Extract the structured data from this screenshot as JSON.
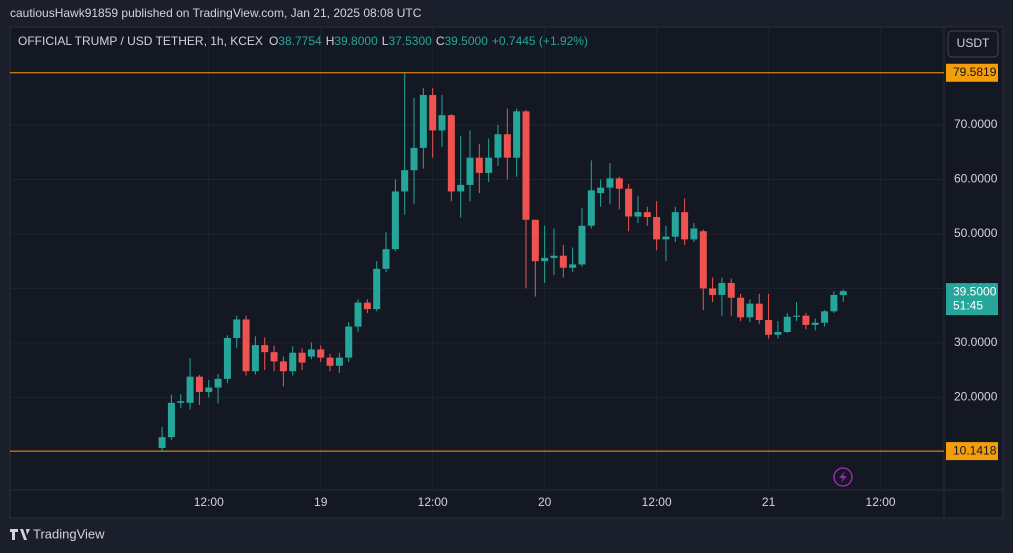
{
  "header": "cautiousHawk91859 published on TradingView.com, Jan 21, 2025 08:08 UTC",
  "brand": "TradingView",
  "currency_button": "USDT",
  "chart_data": {
    "type": "candlestick",
    "symbol": "OFFICIAL TRUMP / USD TETHER, 1h, KCEX",
    "legend_fields": [
      {
        "key": "O",
        "value": "38.7754"
      },
      {
        "key": "H",
        "value": "39.8000"
      },
      {
        "key": "L",
        "value": "37.5300"
      },
      {
        "key": "C",
        "value": "39.5000"
      }
    ],
    "change": "+0.7445 (+1.92%)",
    "up_color": "#26a69a",
    "down_color": "#ef5350",
    "open": [
      10.7,
      12.7,
      19.0,
      19.0,
      23.8,
      21.0,
      21.8,
      23.4,
      30.9,
      34.3,
      24.8,
      29.6,
      28.3,
      26.6,
      24.8,
      28.2,
      27.5,
      28.8,
      27.3,
      25.8,
      27.3,
      33.0,
      37.4,
      36.2,
      43.6,
      47.2,
      57.8,
      61.7,
      65.8,
      75.5,
      69.0,
      71.8,
      57.8,
      59.0,
      64.0,
      61.2,
      64.0,
      68.3,
      64.0,
      72.5,
      52.6,
      45.0,
      45.6,
      46.0,
      43.8,
      44.4,
      51.5,
      57.5,
      58.5,
      60.2,
      58.3,
      53.2,
      54.0,
      53.1,
      49.0,
      49.5,
      54.0,
      49.0,
      50.5,
      40.0,
      38.8,
      41.0,
      38.3,
      34.7,
      37.2,
      34.2,
      31.5,
      32.0,
      34.8,
      35.0,
      33.3,
      33.7,
      35.8,
      38.7754
    ],
    "high": [
      14.6,
      20.5,
      20.6,
      27.2,
      24.1,
      23.2,
      24.3,
      31.4,
      35.0,
      35.0,
      31.2,
      31.0,
      29.5,
      27.5,
      29.4,
      29.0,
      30.1,
      29.5,
      28.0,
      28.2,
      33.8,
      38.0,
      38.0,
      45.0,
      50.3,
      60.0,
      79.5819,
      75.0,
      76.8,
      76.8,
      75.5,
      72.0,
      68.0,
      69.0,
      66.5,
      67.5,
      70.0,
      73.0,
      73.0,
      72.8,
      52.6,
      51.5,
      51.0,
      48.0,
      47.5,
      54.8,
      63.5,
      60.0,
      63.0,
      60.5,
      59.2,
      57.0,
      55.0,
      56.0,
      51.5,
      55.0,
      56.5,
      52.0,
      50.8,
      42.0,
      42.0,
      41.8,
      39.0,
      38.0,
      39.0,
      39.0,
      34.0,
      35.5,
      37.5,
      35.5,
      34.5,
      36.0,
      39.5,
      39.8
    ],
    "low": [
      10.1418,
      12.2,
      18.0,
      17.8,
      18.6,
      20.0,
      18.9,
      22.6,
      29.0,
      24.0,
      24.2,
      25.0,
      24.8,
      22.0,
      24.0,
      25.0,
      27.0,
      26.5,
      24.8,
      24.5,
      26.5,
      32.0,
      35.5,
      35.8,
      43.0,
      46.8,
      53.5,
      55.5,
      62.0,
      64.0,
      66.0,
      56.0,
      53.0,
      56.0,
      57.5,
      59.5,
      62.5,
      60.0,
      60.5,
      40.0,
      38.5,
      41.0,
      42.5,
      42.0,
      43.0,
      44.0,
      51.0,
      55.0,
      55.5,
      54.5,
      50.5,
      52.0,
      51.5,
      47.0,
      45.0,
      48.5,
      48.0,
      48.5,
      36.0,
      37.5,
      35.0,
      35.0,
      34.0,
      33.8,
      33.5,
      30.8,
      30.8,
      31.8,
      34.0,
      32.5,
      32.3,
      33.0,
      35.5,
      37.53
    ],
    "close": [
      12.7,
      19.0,
      19.3,
      23.8,
      21.0,
      21.8,
      23.4,
      30.9,
      34.3,
      24.8,
      29.6,
      28.3,
      26.6,
      24.8,
      28.2,
      26.4,
      28.8,
      27.3,
      25.8,
      27.3,
      33.0,
      37.4,
      36.2,
      43.6,
      47.2,
      57.8,
      61.7,
      65.8,
      75.5,
      69.0,
      71.8,
      57.8,
      59.0,
      64.0,
      61.2,
      64.0,
      68.3,
      64.0,
      72.5,
      52.6,
      45.0,
      45.6,
      46.0,
      43.8,
      44.4,
      51.5,
      58.0,
      58.5,
      60.2,
      58.3,
      53.2,
      54.0,
      53.1,
      49.0,
      49.5,
      54.0,
      49.0,
      51.0,
      40.0,
      38.8,
      41.0,
      38.3,
      34.7,
      37.2,
      34.2,
      31.5,
      32.0,
      34.8,
      35.0,
      33.3,
      33.7,
      35.8,
      38.8,
      39.5
    ],
    "xlim": [
      -16.3,
      83.8
    ],
    "xticks": [
      {
        "value": 5,
        "label": "12:00"
      },
      {
        "value": 17,
        "label": "19"
      },
      {
        "value": 29,
        "label": "12:00"
      },
      {
        "value": 41,
        "label": "20"
      },
      {
        "value": 53,
        "label": "12:00"
      },
      {
        "value": 65,
        "label": "21"
      },
      {
        "value": 77,
        "label": "12:00"
      }
    ],
    "ylim": [
      3.0,
      87.8
    ],
    "yticks": [
      {
        "value": 20,
        "label": "20.0000"
      },
      {
        "value": 30,
        "label": "30.0000"
      },
      {
        "value": 40,
        "label": "40.0000"
      },
      {
        "value": 50,
        "label": "50.0000"
      },
      {
        "value": 60,
        "label": "60.0000"
      },
      {
        "value": 70,
        "label": "70.0000"
      }
    ],
    "grid": true,
    "price_lines": [
      {
        "value": 79.5819,
        "color": "#f59e0b"
      },
      {
        "value": 10.1418,
        "color": "#f59e0b"
      }
    ],
    "last_price": {
      "value": 39.5,
      "label": "39.5000",
      "countdown": "51:45"
    }
  }
}
